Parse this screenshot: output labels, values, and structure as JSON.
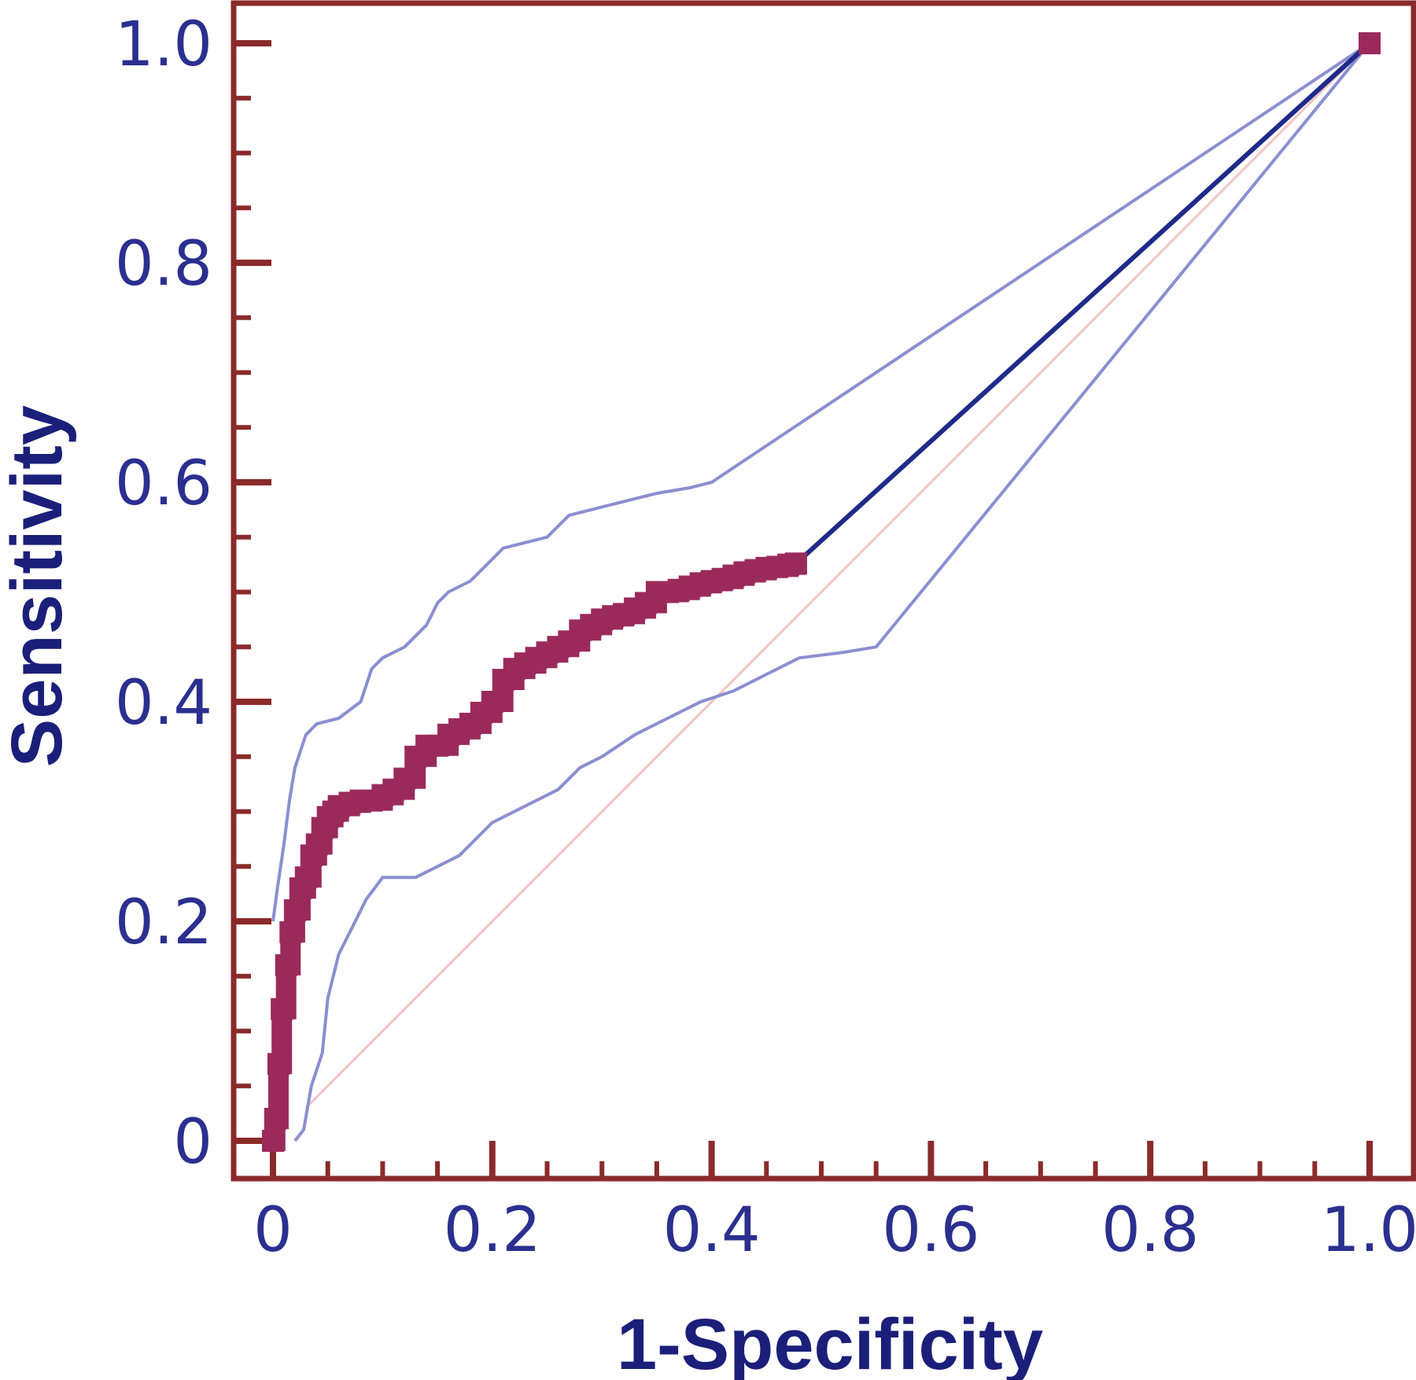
{
  "chart_data": {
    "type": "line",
    "title": "",
    "xlabel": "1-Specificity",
    "ylabel": "Sensitivity",
    "xlim": [
      0,
      1.0
    ],
    "ylim": [
      0,
      1.0
    ],
    "x_ticks": [
      0,
      0.2,
      0.4,
      0.6,
      0.8,
      1.0
    ],
    "y_ticks": [
      0,
      0.2,
      0.4,
      0.6,
      0.8,
      1.0
    ],
    "x_tick_labels": [
      "0",
      "0.2",
      "0.4",
      "0.6",
      "0.8",
      "1.0"
    ],
    "y_tick_labels": [
      "0",
      "0.2",
      "0.4",
      "0.6",
      "0.8",
      "1.0"
    ],
    "grid": false,
    "colors": {
      "frame": "#8b2a2a",
      "roc_points": "#9b2a5c",
      "roc_line": "#1f2a8a",
      "ci_band": "#8a8fd0",
      "diagonal": "#f2c4c4",
      "text": "#2b2f8f",
      "axis_title": "#1b1f7a"
    },
    "series": [
      {
        "kind": "roc-curve",
        "x": [
          0,
          0.002,
          0.005,
          0.008,
          0.012,
          0.016,
          0.02,
          0.025,
          0.03,
          0.035,
          0.04,
          0.045,
          0.05,
          0.055,
          0.06,
          0.07,
          0.08,
          0.09,
          0.1,
          0.11,
          0.12,
          0.13,
          0.14,
          0.15,
          0.16,
          0.17,
          0.18,
          0.19,
          0.2,
          0.21,
          0.22,
          0.23,
          0.24,
          0.25,
          0.26,
          0.27,
          0.28,
          0.29,
          0.3,
          0.31,
          0.32,
          0.33,
          0.34,
          0.35,
          0.36,
          0.37,
          0.38,
          0.39,
          0.4,
          0.41,
          0.42,
          0.43,
          0.44,
          0.45,
          0.46,
          0.47,
          0.477,
          1.0
        ],
        "y": [
          0,
          0.02,
          0.07,
          0.12,
          0.16,
          0.19,
          0.21,
          0.23,
          0.24,
          0.26,
          0.27,
          0.285,
          0.295,
          0.3,
          0.305,
          0.308,
          0.31,
          0.31,
          0.315,
          0.32,
          0.33,
          0.35,
          0.36,
          0.36,
          0.37,
          0.375,
          0.38,
          0.39,
          0.4,
          0.42,
          0.43,
          0.435,
          0.44,
          0.445,
          0.45,
          0.455,
          0.465,
          0.47,
          0.475,
          0.478,
          0.48,
          0.485,
          0.49,
          0.5,
          0.5,
          0.502,
          0.505,
          0.508,
          0.51,
          0.512,
          0.515,
          0.518,
          0.52,
          0.522,
          0.523,
          0.525,
          0.526,
          1.0
        ]
      },
      {
        "kind": "upper-ci",
        "x": [
          0,
          0.004,
          0.01,
          0.015,
          0.02,
          0.03,
          0.04,
          0.06,
          0.08,
          0.09,
          0.1,
          0.12,
          0.14,
          0.15,
          0.16,
          0.18,
          0.19,
          0.21,
          0.23,
          0.25,
          0.27,
          0.29,
          0.31,
          0.33,
          0.35,
          0.38,
          0.4,
          1.0
        ],
        "y": [
          0.2,
          0.23,
          0.27,
          0.31,
          0.34,
          0.37,
          0.38,
          0.385,
          0.4,
          0.43,
          0.44,
          0.45,
          0.47,
          0.49,
          0.5,
          0.51,
          0.52,
          0.54,
          0.545,
          0.55,
          0.57,
          0.575,
          0.58,
          0.585,
          0.59,
          0.595,
          0.6,
          1.0
        ]
      },
      {
        "kind": "lower-ci",
        "x": [
          0.02,
          0.028,
          0.035,
          0.045,
          0.05,
          0.06,
          0.07,
          0.085,
          0.1,
          0.13,
          0.15,
          0.17,
          0.18,
          0.2,
          0.22,
          0.24,
          0.26,
          0.28,
          0.3,
          0.33,
          0.36,
          0.39,
          0.42,
          0.45,
          0.48,
          0.52,
          0.55,
          1.0
        ],
        "y": [
          0,
          0.01,
          0.05,
          0.08,
          0.13,
          0.17,
          0.19,
          0.22,
          0.24,
          0.24,
          0.25,
          0.26,
          0.27,
          0.29,
          0.3,
          0.31,
          0.32,
          0.34,
          0.35,
          0.37,
          0.385,
          0.4,
          0.41,
          0.425,
          0.44,
          0.445,
          0.45,
          1.0
        ]
      },
      {
        "kind": "reference-diagonal",
        "x": [
          0.03,
          1.0
        ],
        "y": [
          0.03,
          1.0
        ]
      }
    ]
  }
}
